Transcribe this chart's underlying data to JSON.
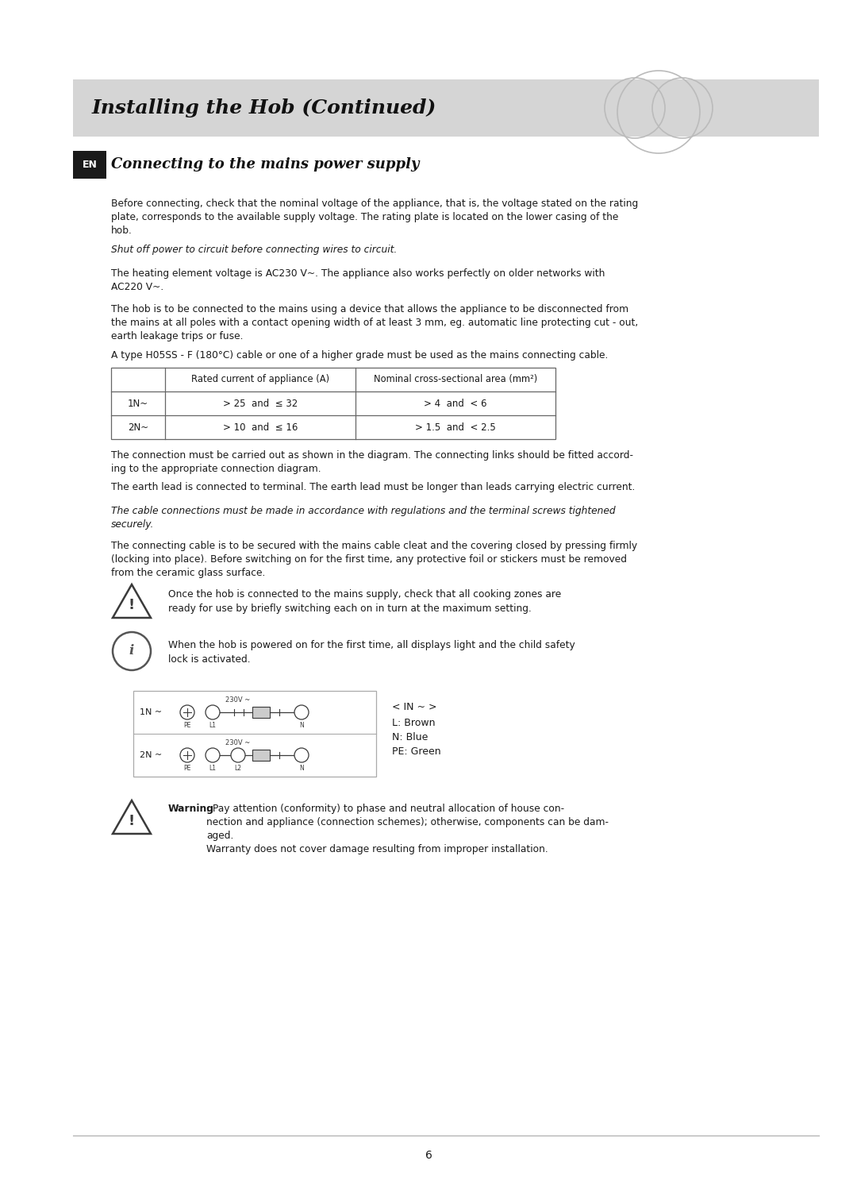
{
  "page_bg": "#ffffff",
  "header_bg": "#d5d5d5",
  "header_text": "Installing the Hob (Continued)",
  "header_font_size": 18,
  "en_box_bg": "#1a1a1a",
  "en_text": "EN",
  "section_title": "Connecting to the mains power supply",
  "body_font_size": 8.8,
  "body_color": "#1a1a1a",
  "para1": "Before connecting, check that the nominal voltage of the appliance, that is, the voltage stated on the rating\nplate, corresponds to the available supply voltage. The rating plate is located on the lower casing of the\nhob.",
  "para2_italic": "Shut off power to circuit before connecting wires to circuit.",
  "para3": "The heating element voltage is AC230 V~. The appliance also works perfectly on older networks with\nAC220 V~.",
  "para4": "The hob is to be connected to the mains using a device that allows the appliance to be disconnected from\nthe mains at all poles with a contact opening width of at least 3 mm, eg. automatic line protecting cut - out,\nearth leakage trips or fuse.",
  "para5": "A type H05SS - F (180°C) cable or one of a higher grade must be used as the mains connecting cable.",
  "table_col1_header": "",
  "table_col2_header": "Rated current of appliance (A)",
  "table_col3_header": "Nominal cross-sectional area (mm²)",
  "table_row1": [
    "1N~",
    "> 25  and  ≤ 32",
    "> 4  and  < 6"
  ],
  "table_row2": [
    "2N~",
    "> 10  and  ≤ 16",
    "> 1.5  and  < 2.5"
  ],
  "para6": "The connection must be carried out as shown in the diagram. The connecting links should be fitted accord-\ning to the appropriate connection diagram.",
  "para7": "The earth lead is connected to terminal. The earth lead must be longer than leads carrying electric current.",
  "para8_italic": "The cable connections must be made in accordance with regulations and the terminal screws tightened\nsecurely.",
  "para9": "The connecting cable is to be secured with the mains cable cleat and the covering closed by pressing firmly\n(locking into place). Before switching on for the first time, any protective foil or stickers must be removed\nfrom the ceramic glass surface.",
  "warning1": "Once the hob is connected to the mains supply, check that all cooking zones are\nready for use by briefly switching each on in turn at the maximum setting.",
  "info1": "When the hob is powered on for the first time, all displays light and the child safety\nlock is activated.",
  "legend_line1": "< IN ~ >",
  "legend_line2": "L: Brown",
  "legend_line3": "N: Blue",
  "legend_line4": "PE: Green",
  "warning2_bold": "Warning",
  "warning2_rest": ": Pay attention (conformity) to phase and neutral allocation of house con-\nnection and appliance (connection schemes); otherwise, components can be dam-\naged.\nWarranty does not cover damage resulting from improper installation.",
  "page_number": "6"
}
